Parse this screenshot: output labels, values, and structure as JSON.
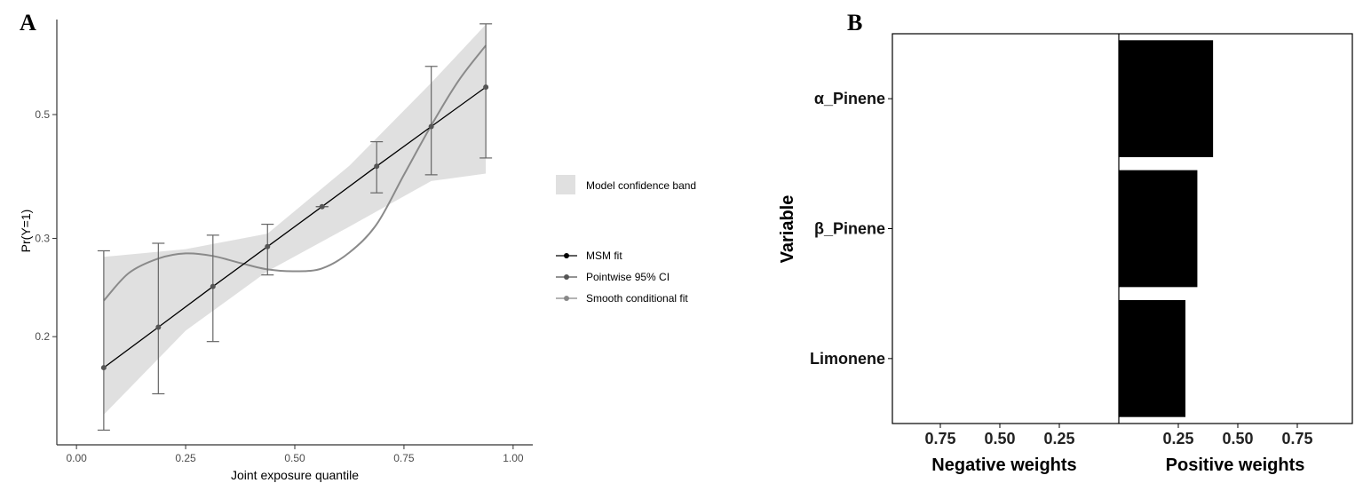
{
  "chart_data": [
    {
      "panel": "A",
      "type": "line",
      "xlabel": "Joint exposure quantile",
      "ylabel": "Pr(Y=1)",
      "xlim": [
        -0.045,
        1.045
      ],
      "ylim": [
        0.128,
        0.74
      ],
      "y_scale": "log",
      "x_ticks": [
        "0.00",
        "0.25",
        "0.50",
        "0.75",
        "1.00"
      ],
      "y_ticks": [
        "0.2",
        "0.3",
        "0.5"
      ],
      "grid": false,
      "legend": {
        "band_label": "Model confidence band",
        "entries": [
          "MSM fit",
          "Pointwise 95% CI",
          "Smooth conditional fit"
        ]
      },
      "series": [
        {
          "name": "MSM fit",
          "x": [
            0.0625,
            0.1875,
            0.3125,
            0.4375,
            0.5625,
            0.6875,
            0.8125,
            0.9375
          ],
          "values": [
            0.176,
            0.208,
            0.246,
            0.29,
            0.342,
            0.404,
            0.476,
            0.56
          ]
        },
        {
          "name": "Pointwise 95% CI",
          "x": [
            0.0625,
            0.1875,
            0.3125,
            0.4375,
            0.5625,
            0.6875,
            0.8125,
            0.9375
          ],
          "lower": [
            0.136,
            0.158,
            0.196,
            0.258,
            0.342,
            0.362,
            0.39,
            0.418
          ],
          "upper": [
            0.285,
            0.294,
            0.304,
            0.318,
            0.342,
            0.447,
            0.61,
            0.727
          ]
        },
        {
          "name": "Smooth conditional fit",
          "x": [
            0.0625,
            0.12,
            0.1875,
            0.25,
            0.3125,
            0.375,
            0.4375,
            0.5,
            0.5625,
            0.625,
            0.6875,
            0.75,
            0.8125,
            0.875,
            0.9375
          ],
          "values": [
            0.232,
            0.26,
            0.276,
            0.282,
            0.279,
            0.271,
            0.264,
            0.262,
            0.265,
            0.283,
            0.318,
            0.39,
            0.478,
            0.575,
            0.665
          ]
        }
      ],
      "band": {
        "name": "Model confidence band",
        "x": [
          0.0625,
          0.25,
          0.4375,
          0.625,
          0.8125,
          0.9375
        ],
        "lower": [
          0.145,
          0.205,
          0.262,
          0.315,
          0.38,
          0.392
        ],
        "upper": [
          0.278,
          0.287,
          0.306,
          0.405,
          0.57,
          0.725
        ]
      }
    },
    {
      "panel": "B",
      "type": "bar",
      "orientation": "horizontal",
      "ylabel": "Variable",
      "categories": [
        "α_Pinene",
        "β_Pinene",
        "Limonene"
      ],
      "values": [
        0.396,
        0.33,
        0.28
      ],
      "sides": [
        {
          "xlabel": "Negative weights",
          "ticks": [
            "0.75",
            "0.50",
            "0.25"
          ],
          "values": []
        },
        {
          "xlabel": "Positive weights",
          "ticks": [
            "0.25",
            "0.50",
            "0.75"
          ],
          "values": [
            0.396,
            0.33,
            0.28
          ]
        }
      ],
      "bar_color": "#000000"
    }
  ],
  "panel_labels": [
    "A",
    "B"
  ]
}
